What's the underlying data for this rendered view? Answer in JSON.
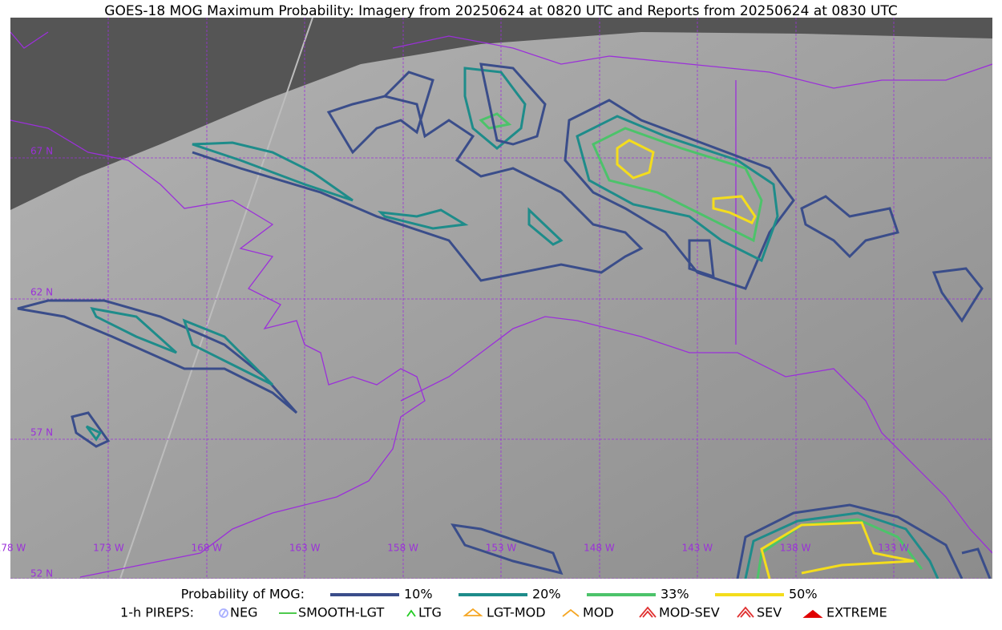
{
  "title": "GOES-18 MOG Maximum Probability: Imagery from 20250624 at 0820 UTC and Reports from 20250624 at 0830 UTC",
  "map": {
    "lat_labels": [
      "67 N",
      "62 N",
      "57 N",
      "52 N"
    ],
    "lon_labels": [
      "178 W",
      "173 W",
      "168 W",
      "163 W",
      "158 W",
      "153 W",
      "148 W",
      "143 W",
      "138 W",
      "133 W"
    ]
  },
  "legend": {
    "probability": {
      "label": "Probability of MOG:",
      "items": [
        "10%",
        "20%",
        "33%",
        "50%"
      ]
    },
    "pireps": {
      "label": "1-h PIREPS:",
      "items": [
        "NEG",
        "SMOOTH-LGT",
        "LTG",
        "LGT-MOD",
        "MOD",
        "MOD-SEV",
        "SEV",
        "EXTREME"
      ]
    }
  }
}
